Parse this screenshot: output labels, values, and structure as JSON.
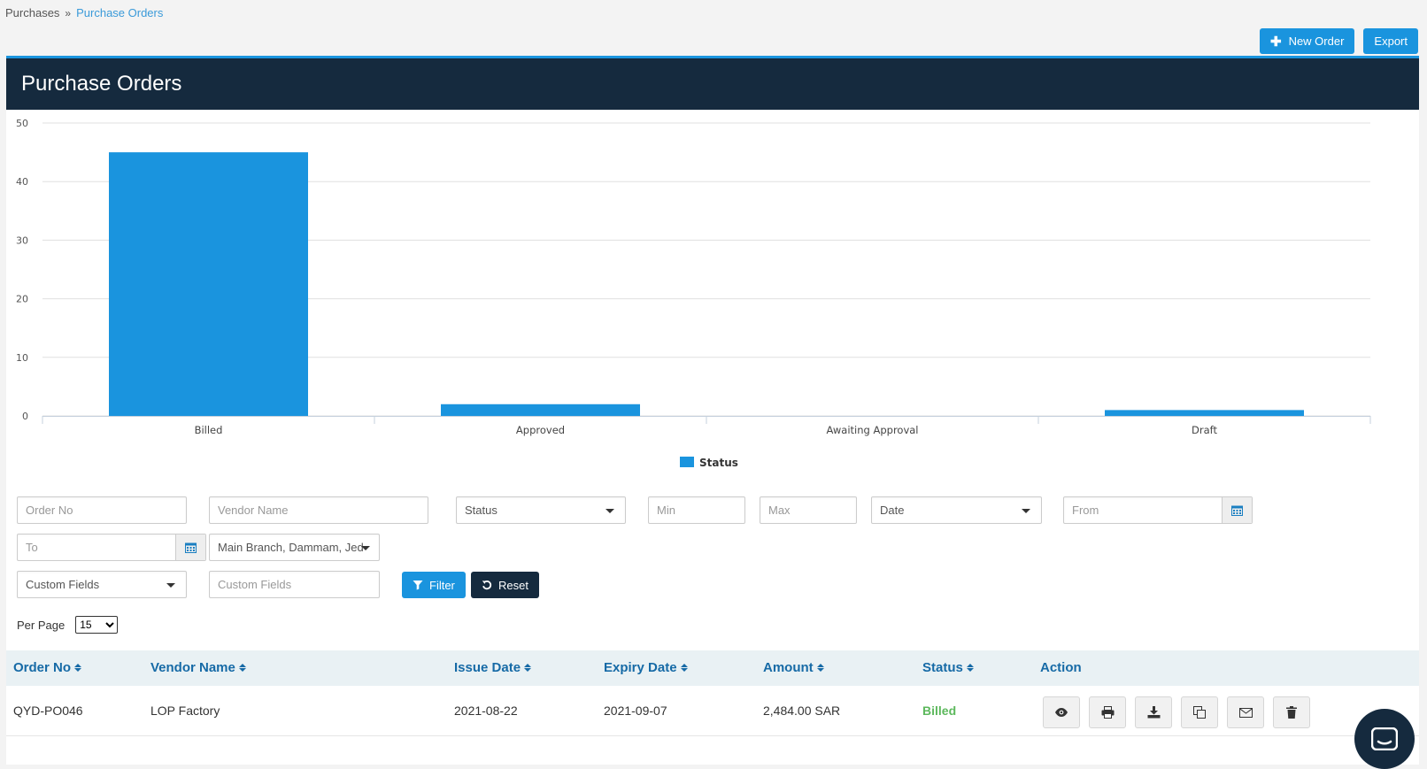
{
  "breadcrumb": {
    "parent": "Purchases",
    "separator": "»",
    "current": "Purchase Orders"
  },
  "top_actions": {
    "new_order": "New Order",
    "export": "Export"
  },
  "panel": {
    "title": "Purchase Orders"
  },
  "chart_data": {
    "type": "bar",
    "categories": [
      "Billed",
      "Approved",
      "Awaiting Approval",
      "Draft"
    ],
    "series": [
      {
        "name": "Status",
        "values": [
          45,
          2,
          0,
          1
        ],
        "color": "#1a94de"
      }
    ],
    "y_ticks": [
      "0",
      "10",
      "20",
      "30",
      "40",
      "50"
    ],
    "ylim": [
      0,
      50
    ],
    "grid": true,
    "legend": "bottom-center"
  },
  "filters": {
    "order_no": "Order No",
    "vendor_name": "Vendor Name",
    "status": "Status",
    "min": "Min",
    "max": "Max",
    "date": "Date",
    "from": "From",
    "to": "To",
    "branch": "Main Branch, Dammam, Jed",
    "custom_fields_select": "Custom Fields",
    "custom_fields_input": "Custom Fields",
    "filter_button": "Filter",
    "reset_button": "Reset"
  },
  "per_page": {
    "label": "Per Page",
    "value": "15"
  },
  "table": {
    "columns": [
      "Order No",
      "Vendor Name",
      "Issue Date",
      "Expiry Date",
      "Amount",
      "Status",
      "Action"
    ],
    "rows": [
      {
        "order_no": "QYD-PO046",
        "vendor": "LOP Factory",
        "issue_date": "2021-08-22",
        "expiry_date": "2021-09-07",
        "amount": "2,484.00 SAR",
        "status": "Billed"
      }
    ]
  },
  "actions": [
    "view-icon",
    "print-icon",
    "download-icon",
    "copy-icon",
    "email-icon",
    "delete-icon"
  ]
}
